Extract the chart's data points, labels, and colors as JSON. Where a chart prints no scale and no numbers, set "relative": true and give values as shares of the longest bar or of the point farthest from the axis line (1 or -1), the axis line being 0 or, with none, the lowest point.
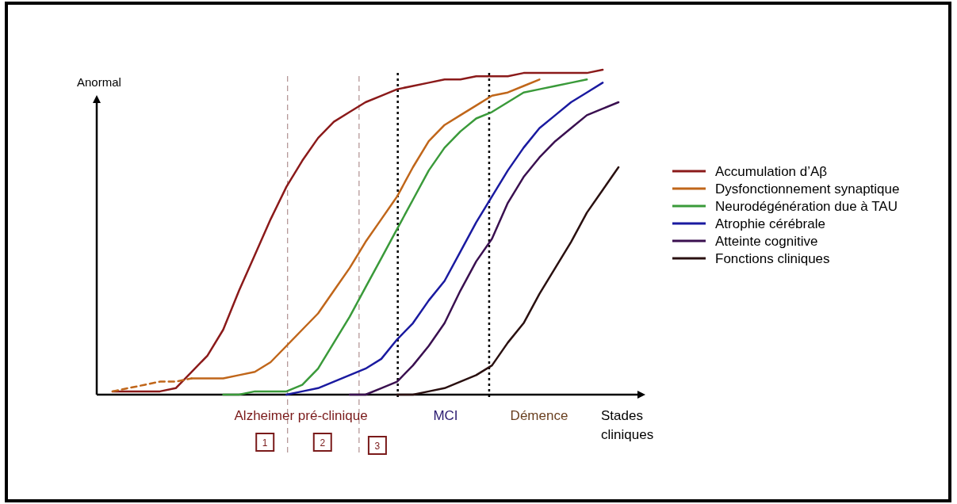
{
  "chart_data": {
    "type": "line",
    "relative": true,
    "ylabel": "Anormal",
    "xlabel": "Stades cliniques",
    "legend": "right",
    "categories": [
      null,
      null,
      null,
      null,
      null,
      null,
      null,
      null,
      null,
      null,
      null,
      null,
      null,
      null,
      null,
      null,
      null,
      null,
      null,
      null,
      null,
      null,
      null,
      null,
      null,
      null,
      null,
      null,
      null,
      null,
      null,
      null,
      null,
      null,
      null
    ],
    "series": [
      {
        "name": "Accumulation d’Aβ",
        "color": "#8b1a1a",
        "values": [
          null,
          0.01,
          0.01,
          0.01,
          0.01,
          0.02,
          0.07,
          0.12,
          0.2,
          0.32,
          0.43,
          0.54,
          0.64,
          0.72,
          0.79,
          0.84,
          0.87,
          0.9,
          0.92,
          0.94,
          0.95,
          0.96,
          0.97,
          0.97,
          0.98,
          0.98,
          0.98,
          0.99,
          0.99,
          0.99,
          0.99,
          0.99,
          1,
          null,
          null
        ]
      },
      {
        "color": "#c0661a",
        "line_style": "dashed",
        "values": [
          null,
          0.01,
          0.02,
          0.03,
          0.04,
          0.04,
          0.05,
          null,
          null,
          null,
          null,
          null,
          null,
          null,
          null,
          null,
          null,
          null,
          null,
          null,
          null,
          null,
          null,
          null,
          null,
          null,
          null,
          null,
          null,
          null,
          null,
          null,
          null,
          null,
          null
        ]
      },
      {
        "name": "Dysfonctionnement synaptique",
        "color": "#c0661a",
        "values": [
          null,
          null,
          null,
          null,
          null,
          null,
          0.05,
          0.05,
          0.05,
          0.06,
          0.07,
          0.1,
          0.15,
          0.2,
          0.25,
          0.32,
          0.39,
          0.47,
          0.54,
          0.61,
          0.7,
          0.78,
          0.83,
          0.86,
          0.89,
          0.92,
          0.93,
          0.95,
          0.97,
          null,
          null,
          null,
          null,
          null,
          null
        ]
      },
      {
        "name": "Neurodégénération due à TAU",
        "color": "#3a9a3a",
        "values": [
          null,
          null,
          null,
          null,
          null,
          null,
          null,
          null,
          0,
          0,
          0.01,
          0.01,
          0.01,
          0.03,
          0.08,
          0.16,
          0.24,
          0.33,
          0.42,
          0.51,
          0.6,
          0.69,
          0.76,
          0.81,
          0.85,
          0.87,
          0.9,
          0.93,
          0.94,
          0.95,
          0.96,
          0.97,
          null,
          null,
          null
        ]
      },
      {
        "name": "Atrophie cérébrale",
        "color": "#1a1aa0",
        "values": [
          null,
          null,
          null,
          null,
          null,
          null,
          null,
          null,
          null,
          null,
          null,
          null,
          0,
          0.01,
          0.02,
          0.04,
          0.06,
          0.08,
          0.11,
          0.17,
          0.22,
          0.29,
          0.35,
          0.44,
          0.53,
          0.61,
          0.69,
          0.76,
          0.82,
          0.86,
          0.9,
          0.93,
          0.96,
          null,
          null
        ]
      },
      {
        "name": "Atteinte cognitive",
        "color": "#3a1050",
        "values": [
          null,
          null,
          null,
          null,
          null,
          null,
          null,
          null,
          null,
          null,
          null,
          null,
          null,
          null,
          null,
          null,
          0,
          0,
          0.02,
          0.04,
          0.09,
          0.15,
          0.22,
          0.32,
          0.41,
          0.48,
          0.59,
          0.67,
          0.73,
          0.78,
          0.82,
          0.86,
          0.88,
          0.9,
          null
        ]
      },
      {
        "name": "Fonctions cliniques",
        "color": "#2a1010",
        "values": [
          null,
          null,
          null,
          null,
          null,
          null,
          null,
          null,
          null,
          null,
          null,
          null,
          null,
          null,
          null,
          null,
          null,
          null,
          null,
          0,
          0,
          0.01,
          0.02,
          0.04,
          0.06,
          0.09,
          0.16,
          0.22,
          0.31,
          0.39,
          0.47,
          0.56,
          0.63,
          0.7,
          null
        ]
      }
    ],
    "annotations": [
      "Alzheimer pré-clinique",
      "MCI",
      "Démence",
      "1",
      "2",
      "3"
    ]
  }
}
